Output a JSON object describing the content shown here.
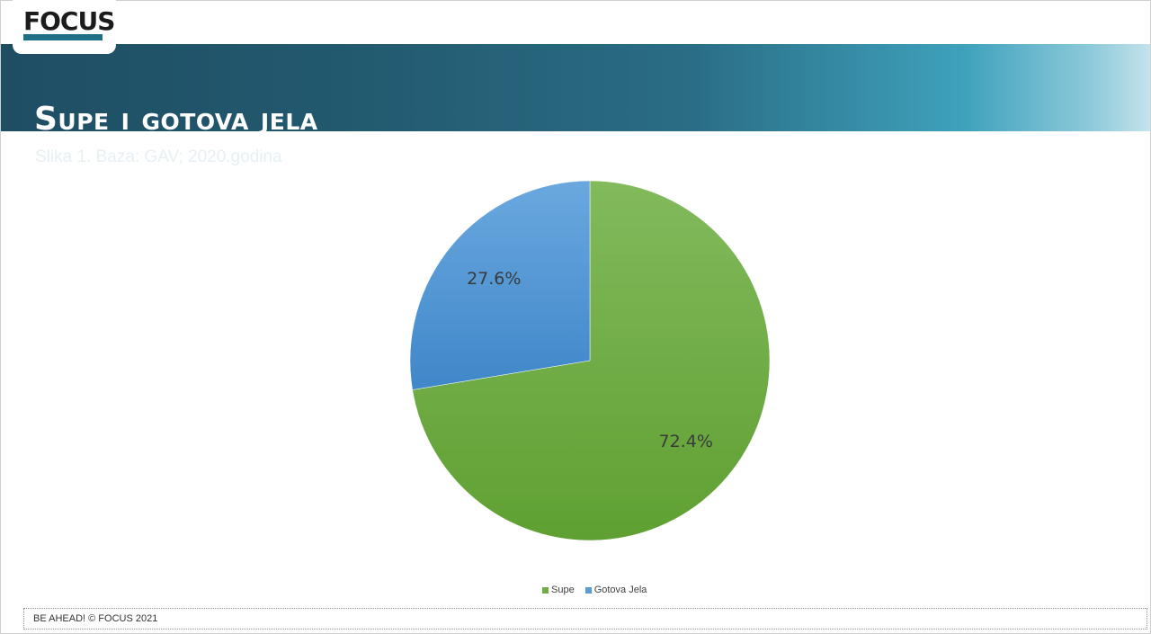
{
  "header": {
    "logo_text": "FOCUS",
    "title": "Supe i gotova jela",
    "subtitle": "Slika 1. Baza: GAV; 2020.godina"
  },
  "legend": {
    "items": [
      {
        "label": "Supe",
        "color": "#70ad47"
      },
      {
        "label": "Gotova Jela",
        "color": "#5b9bd5"
      }
    ]
  },
  "footer": {
    "text": "BE AHEAD! © FOCUS 2021"
  },
  "chart_data": {
    "type": "pie",
    "categories": [
      "Supe",
      "Gotova Jela"
    ],
    "values": [
      72.4,
      27.6
    ],
    "labels": [
      "72.4%",
      "27.6%"
    ],
    "colors": [
      "#70ad47",
      "#5b9bd5"
    ],
    "legend_position": "bottom"
  }
}
